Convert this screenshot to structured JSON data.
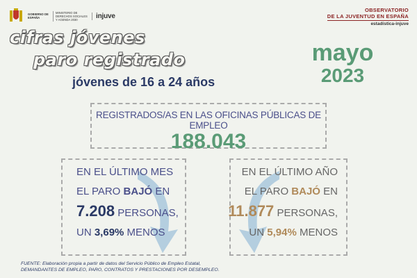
{
  "header": {
    "gov_line1": "GOBIERNO DE ESPAÑA",
    "gov_line2": "MINISTERIO DE DERECHOS SOCIALES Y AGENDA 2030",
    "injuve": "injuve",
    "observatorio_line1": "OBSERVATORIO",
    "observatorio_line2": "DE LA JUVENTUD EN ESPAÑA",
    "observatorio_line3": "estadística-injuve"
  },
  "title": {
    "line1": "cifras jóvenes",
    "line2": "paro registrado",
    "subtitle": "jóvenes de 16 a 24 años"
  },
  "period": {
    "month": "mayo",
    "year": "2023"
  },
  "registered": {
    "label": "REGISTRADOS/AS EN LAS OFICINAS PÚBLICAS DE EMPLEO",
    "value": "188.043"
  },
  "last_month": {
    "line1": "EN EL ÚLTIMO MES",
    "line2_prefix": "EL PARO ",
    "line2_bold": "BAJÓ",
    "line2_suffix": " EN",
    "number": "7.208",
    "unit": " PERSONAS,",
    "line4_prefix": "UN ",
    "percent": "3,69%",
    "line4_suffix": " MENOS"
  },
  "last_year": {
    "line1": "EN EL ÚLTIMO AÑO",
    "line2_prefix": "EL PARO ",
    "line2_bold": "BAJÓ",
    "line2_suffix": " EN",
    "number": "11.877",
    "unit": " PERSONAS,",
    "line4_prefix": "UN ",
    "percent": "5,94%",
    "line4_suffix": " MENOS"
  },
  "source": {
    "line1": "FUENTE: Elaboración propia a partir de datos del Servicio Público de Empleo Estatal,",
    "line2": "DEMANDANTES DE EMPLEO, PARO, CONTRATOS Y PRESTACIONES POR DESEMPLEO."
  },
  "colors": {
    "green": "#5a9b76",
    "navy": "#2b3a66",
    "tan": "#b08a5a",
    "arrow": "#a9c7dc"
  }
}
